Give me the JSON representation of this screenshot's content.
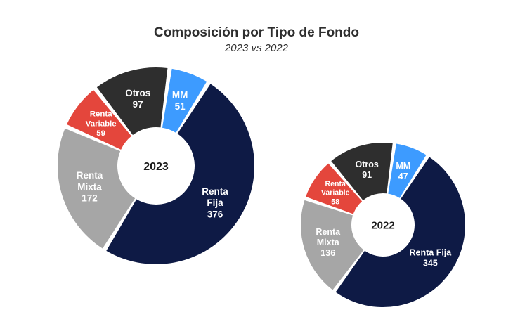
{
  "header": {
    "title": "Composición por Tipo de Fondo",
    "subtitle": "2023 vs 2022"
  },
  "colors": {
    "MM": "#3d9bff",
    "Renta Fija": "#0e1a45",
    "Renta Mixta": "#a6a6a6",
    "Renta Variable": "#e4463c",
    "Otros": "#2e2e2e",
    "label_light": "#ffffff"
  },
  "chart_data": [
    {
      "type": "pie",
      "title": "2023",
      "categories": [
        "MM",
        "Renta Fija",
        "Renta Mixta",
        "Renta Variable",
        "Otros"
      ],
      "values": [
        51,
        376,
        172,
        59,
        97
      ],
      "labels": [
        [
          "MM",
          "51"
        ],
        [
          "Renta",
          "Fija",
          "376"
        ],
        [
          "Renta",
          "Mixta",
          "172"
        ],
        [
          "Renta",
          "Variable",
          "59"
        ],
        [
          "Otros",
          "97"
        ]
      ]
    },
    {
      "type": "pie",
      "title": "2022",
      "categories": [
        "MM",
        "Renta Fija",
        "Renta Mixta",
        "Renta Variable",
        "Otros"
      ],
      "values": [
        47,
        345,
        136,
        58,
        91
      ],
      "labels": [
        [
          "MM",
          "47"
        ],
        [
          "Renta Fija",
          "345"
        ],
        [
          "Renta",
          "Mixta",
          "136"
        ],
        [
          "Renta",
          "Variable",
          "58"
        ],
        [
          "Otros",
          "91"
        ]
      ]
    }
  ]
}
